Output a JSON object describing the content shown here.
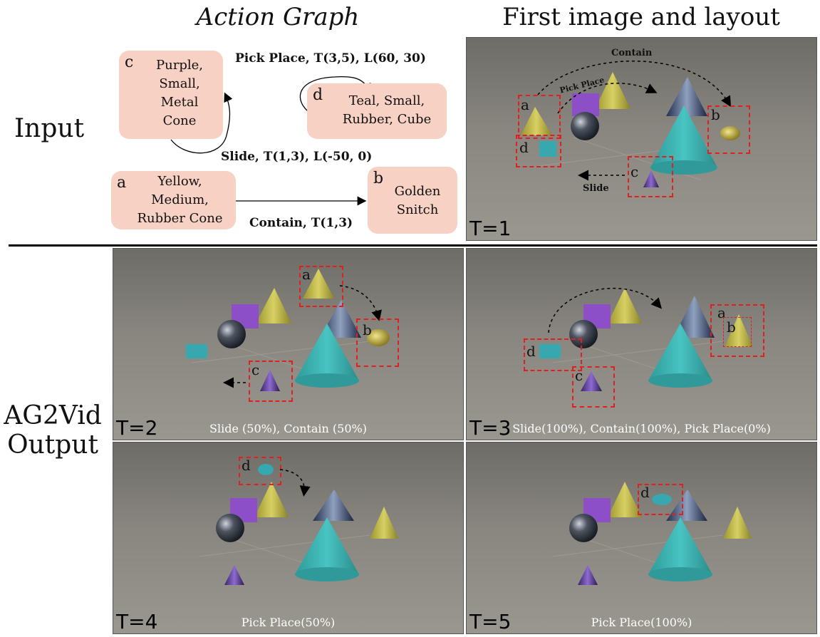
{
  "headers": {
    "graph": "Action Graph",
    "layout": "First image and layout"
  },
  "row_labels": {
    "input": "Input",
    "output": "AG2Vid\nOutput"
  },
  "nodes": {
    "a": {
      "letter": "a",
      "text": "Yellow,\nMedium,\nRubber Cone"
    },
    "b": {
      "letter": "b",
      "text": "Golden\nSnitch"
    },
    "c": {
      "letter": "c",
      "text": "Purple,\nSmall,\nMetal\nCone"
    },
    "d": {
      "letter": "d",
      "text": "Teal, Small,\nRubber, Cube"
    }
  },
  "edges": {
    "pick_place": "Pick Place, T(3,5), L(60, 30)",
    "slide": "Slide, T(1,3), L(-50, 0)",
    "contain": "Contain, T(1,3)"
  },
  "panels": {
    "t1": {
      "t": "T=1",
      "caption": "",
      "arrows": {
        "contain": "Contain",
        "pick_place": "Pick Place",
        "slide": "Slide"
      }
    },
    "t2": {
      "t": "T=2",
      "caption": "Slide (50%), Contain (50%)"
    },
    "t3": {
      "t": "T=3",
      "caption": "Slide(100%), Contain(100%), Pick Place(0%)"
    },
    "t4": {
      "t": "T=4",
      "caption": "Pick Place(50%)"
    },
    "t5": {
      "t": "T=5",
      "caption": "Pick Place(100%)"
    }
  },
  "box_letters": {
    "a": "a",
    "b": "b",
    "c": "c",
    "d": "d"
  },
  "colors": {
    "node_fill": "#f7d2c4",
    "box_dash": "#e01f1f",
    "scene_bg": "#7d7a72"
  }
}
